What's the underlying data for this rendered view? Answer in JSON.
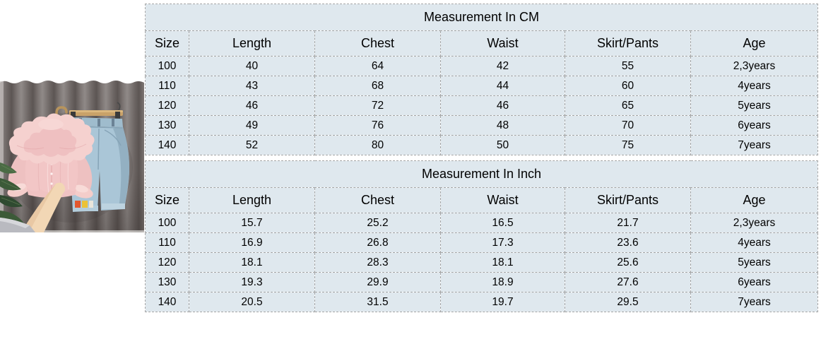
{
  "theme": {
    "page_bg": "#ffffff",
    "table_cell_bg": "#dfe8ee",
    "table_grid_color": "#a6a6a6",
    "table_text_color": "#000000"
  },
  "product_photo": {
    "alt": "Girls outfit set: pink ruffled lace blouse on a wooden hanger and light blue jeans on a clip bar hanger, against a gray curtain, with a plant leaf at left and a hand reaching up from below",
    "colors": {
      "blouse_pink": "#f2c6c6",
      "collar_pink_light": "#f5d1cf",
      "jeans_blue": "#aac6d7",
      "curtain_gray": "#6e6765",
      "hanger_wood": "#c8a065",
      "plant_green": "#3c5a38",
      "skin_tone": "#f2d7b5",
      "patch_red": "#e2572f",
      "patch_yellow": "#ecc236"
    }
  },
  "chart_data": [
    {
      "type": "table",
      "title": "Measurement In CM",
      "columns": [
        "Size",
        "Length",
        "Chest",
        "Waist",
        "Skirt/Pants",
        "Age"
      ],
      "rows": [
        [
          "100",
          "40",
          "64",
          "42",
          "55",
          "2,3years"
        ],
        [
          "110",
          "43",
          "68",
          "44",
          "60",
          "4years"
        ],
        [
          "120",
          "46",
          "72",
          "46",
          "65",
          "5years"
        ],
        [
          "130",
          "49",
          "76",
          "48",
          "70",
          "6years"
        ],
        [
          "140",
          "52",
          "80",
          "50",
          "75",
          "7years"
        ]
      ]
    },
    {
      "type": "table",
      "title": "Measurement In Inch",
      "columns": [
        "Size",
        "Length",
        "Chest",
        "Waist",
        "Skirt/Pants",
        "Age"
      ],
      "rows": [
        [
          "100",
          "15.7",
          "25.2",
          "16.5",
          "21.7",
          "2,3years"
        ],
        [
          "110",
          "16.9",
          "26.8",
          "17.3",
          "23.6",
          "4years"
        ],
        [
          "120",
          "18.1",
          "28.3",
          "18.1",
          "25.6",
          "5years"
        ],
        [
          "130",
          "19.3",
          "29.9",
          "18.9",
          "27.6",
          "6years"
        ],
        [
          "140",
          "20.5",
          "31.5",
          "19.7",
          "29.5",
          "7years"
        ]
      ]
    }
  ]
}
